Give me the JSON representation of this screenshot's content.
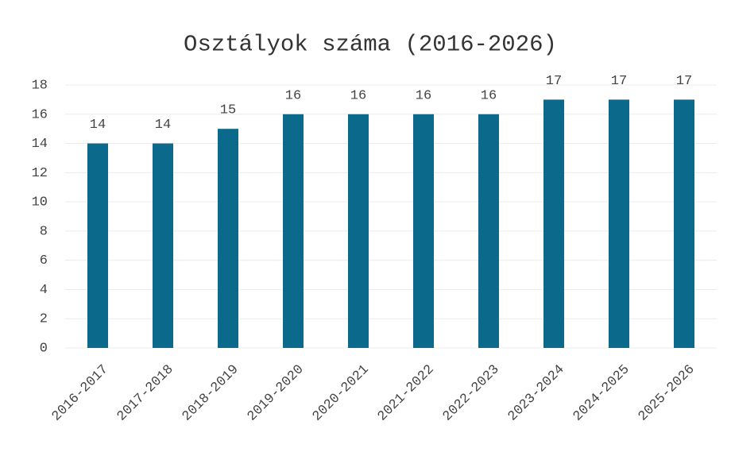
{
  "chart_data": {
    "type": "bar",
    "title": "Osztályok száma (2016-2026)",
    "categories": [
      "2016-2017",
      "2017-2018",
      "2018-2019",
      "2019-2020",
      "2020-2021",
      "2021-2022",
      "2022-2023",
      "2023-2024",
      "2024-2025",
      "2025-2026"
    ],
    "values": [
      14,
      14,
      15,
      16,
      16,
      16,
      16,
      17,
      17,
      17
    ],
    "color": "#0b6a8b",
    "ylim": [
      0,
      18
    ],
    "yticks": [
      0,
      2,
      4,
      6,
      8,
      10,
      12,
      14,
      16,
      18
    ],
    "grid": true
  }
}
